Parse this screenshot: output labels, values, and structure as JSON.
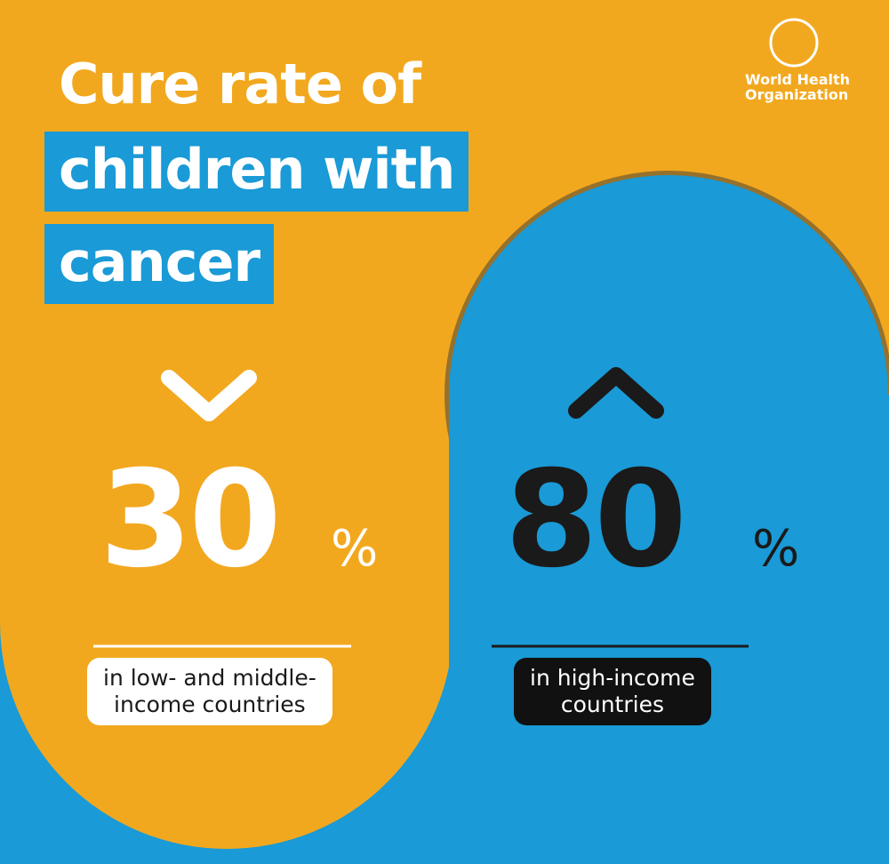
{
  "title": {
    "lines": [
      "Cure rate of",
      "children with",
      "cancer"
    ]
  },
  "logo": {
    "lines": [
      "World Health",
      "Organization"
    ]
  },
  "stats": [
    {
      "value": 30,
      "unit": "%",
      "label_lines": [
        "in low- and middle-",
        "income countries"
      ]
    },
    {
      "value": 80,
      "unit": "%",
      "label_lines": [
        "in high-income",
        "countries"
      ]
    }
  ]
}
